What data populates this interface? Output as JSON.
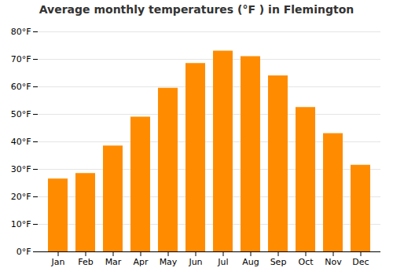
{
  "chart_data": {
    "type": "bar",
    "title": "Average monthly temperatures (°F ) in Flemington",
    "categories": [
      "Jan",
      "Feb",
      "Mar",
      "Apr",
      "May",
      "Jun",
      "Jul",
      "Aug",
      "Sep",
      "Oct",
      "Nov",
      "Dec"
    ],
    "values": [
      26.5,
      28.5,
      38.5,
      49.0,
      59.5,
      68.5,
      73.0,
      71.0,
      64.0,
      52.5,
      43.0,
      31.5
    ],
    "color": "#FF8C00",
    "ylim": [
      0,
      80
    ],
    "yticks": [
      {
        "value": 0,
        "label": "0°F"
      },
      {
        "value": 10,
        "label": "10°F"
      },
      {
        "value": 20,
        "label": "20°F"
      },
      {
        "value": 30,
        "label": "30°F"
      },
      {
        "value": 40,
        "label": "40°F"
      },
      {
        "value": 50,
        "label": "50°F"
      },
      {
        "value": 60,
        "label": "60°F"
      },
      {
        "value": 70,
        "label": "70°F"
      },
      {
        "value": 80,
        "label": "80°F"
      }
    ],
    "grid": true
  }
}
